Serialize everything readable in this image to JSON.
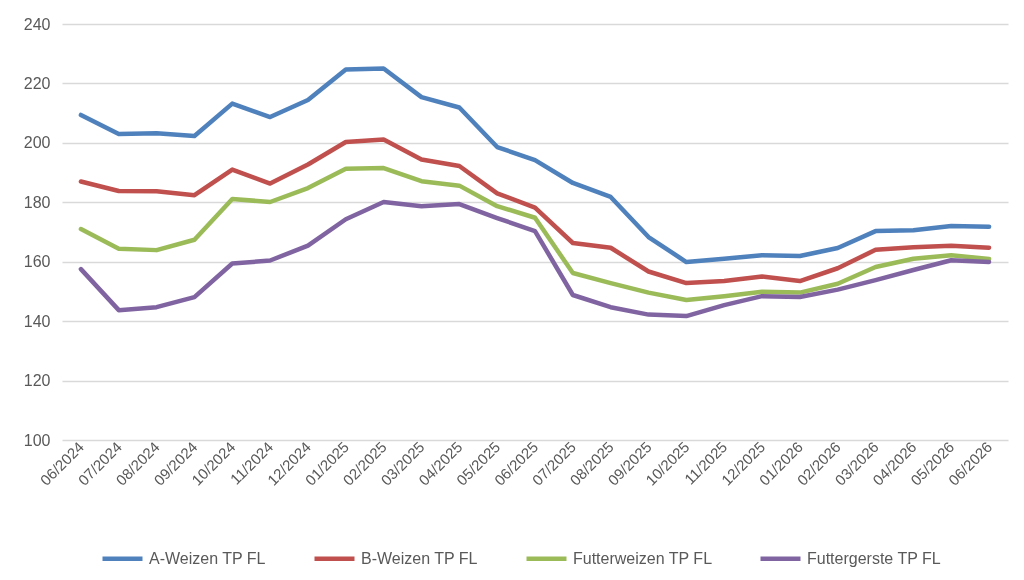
{
  "chart_data": {
    "type": "line",
    "categories": [
      "06/2024",
      "07/2024",
      "08/2024",
      "09/2024",
      "10/2024",
      "11/2024",
      "12/2024",
      "01/2025",
      "02/2025",
      "03/2025",
      "04/2025",
      "05/2025",
      "06/2025",
      "07/2025",
      "08/2025",
      "09/2025",
      "10/2025",
      "11/2025",
      "12/2025",
      "01/2026",
      "02/2026",
      "03/2026",
      "04/2026",
      "05/2026",
      "06/2026"
    ],
    "series": [
      {
        "name": "A-Weizen TP FL",
        "color": "#4f81bd",
        "values": [
          209.4,
          203.0,
          203.2,
          202.3,
          213.2,
          208.7,
          214.4,
          224.7,
          225.0,
          215.4,
          211.9,
          198.6,
          194.2,
          186.5,
          181.8,
          168.3,
          159.9,
          161.0,
          162.2,
          161.9,
          164.6,
          170.3,
          170.6,
          172.0,
          171.8
        ]
      },
      {
        "name": "B-Weizen TP FL",
        "color": "#c0504d",
        "values": [
          187.0,
          183.8,
          183.7,
          182.4,
          191.0,
          186.3,
          192.7,
          200.3,
          201.1,
          194.4,
          192.2,
          183.0,
          178.2,
          166.3,
          164.7,
          156.7,
          152.8,
          153.5,
          155.0,
          153.5,
          157.8,
          164.0,
          164.9,
          165.4,
          164.7
        ]
      },
      {
        "name": "Futterweizen TP FL",
        "color": "#9bbb59",
        "values": [
          171.0,
          164.4,
          163.9,
          167.4,
          181.1,
          180.1,
          184.8,
          191.3,
          191.5,
          187.1,
          185.6,
          178.7,
          174.8,
          156.2,
          152.8,
          149.6,
          147.1,
          148.4,
          149.9,
          149.6,
          152.6,
          158.2,
          161.0,
          162.2,
          160.9
        ]
      },
      {
        "name": "Futtergerste TP FL",
        "color": "#8064a2",
        "values": [
          157.5,
          143.7,
          144.7,
          148.1,
          159.4,
          160.4,
          165.4,
          174.3,
          180.1,
          178.7,
          179.4,
          174.7,
          170.3,
          148.8,
          144.7,
          142.2,
          141.7,
          145.4,
          148.4,
          148.1,
          150.6,
          153.8,
          157.2,
          160.5,
          159.9
        ]
      }
    ],
    "ylim": [
      100,
      240
    ],
    "yticks": [
      100,
      120,
      140,
      160,
      180,
      200,
      220,
      240
    ],
    "grid": "y",
    "legend": "bottom",
    "marker": "none",
    "line_style": "solid"
  }
}
